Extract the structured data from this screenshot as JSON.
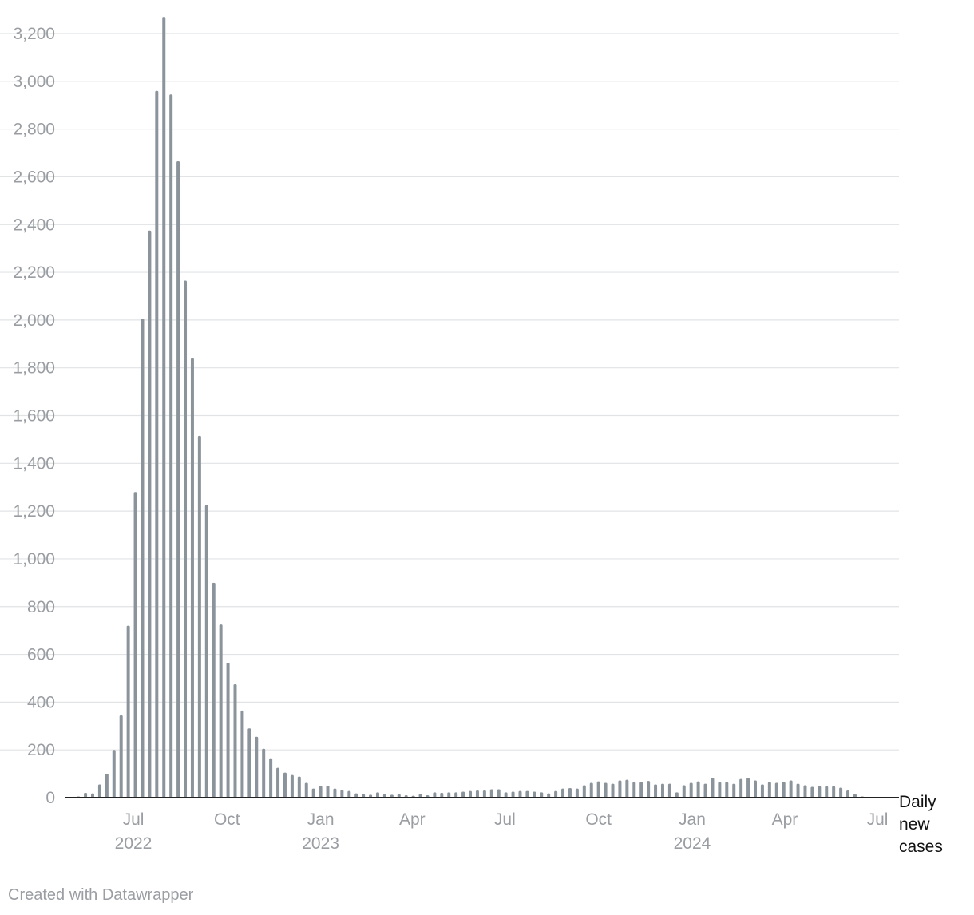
{
  "chart_data": {
    "type": "bar",
    "ylabel": "",
    "xlabel": "",
    "ylim": [
      0,
      3200
    ],
    "yticks": [
      0,
      200,
      400,
      600,
      800,
      1000,
      1200,
      1400,
      1600,
      1800,
      2000,
      2200,
      2400,
      2600,
      2800,
      3000,
      3200
    ],
    "ytick_labels": [
      "0",
      "200",
      "400",
      "600",
      "800",
      "1,000",
      "1,200",
      "1,400",
      "1,600",
      "1,800",
      "2,000",
      "2,200",
      "2,400",
      "2,600",
      "2,800",
      "3,000",
      "3,200"
    ],
    "xticks": [
      {
        "date": "2022-07-01",
        "label": "Jul",
        "year": "2022"
      },
      {
        "date": "2022-10-01",
        "label": "Oct",
        "year": ""
      },
      {
        "date": "2023-01-01",
        "label": "Jan",
        "year": "2023"
      },
      {
        "date": "2023-04-01",
        "label": "Apr",
        "year": ""
      },
      {
        "date": "2023-07-01",
        "label": "Jul",
        "year": ""
      },
      {
        "date": "2023-10-01",
        "label": "Oct",
        "year": ""
      },
      {
        "date": "2024-01-01",
        "label": "Jan",
        "year": "2024"
      },
      {
        "date": "2024-04-01",
        "label": "Apr",
        "year": ""
      },
      {
        "date": "2024-07-01",
        "label": "Jul",
        "year": ""
      }
    ],
    "series_label": [
      "Daily",
      "new",
      "cases"
    ],
    "bar_color": "#8b949b",
    "x_start": "2022-05-08",
    "interval_days": 7,
    "values": [
      5,
      20,
      18,
      55,
      100,
      200,
      345,
      720,
      1280,
      2005,
      2375,
      2960,
      3270,
      2945,
      2665,
      2165,
      1840,
      1515,
      1225,
      900,
      725,
      565,
      475,
      365,
      290,
      255,
      205,
      165,
      125,
      105,
      95,
      88,
      62,
      38,
      48,
      50,
      38,
      32,
      28,
      18,
      15,
      12,
      22,
      15,
      12,
      15,
      10,
      8,
      15,
      10,
      22,
      20,
      22,
      22,
      25,
      28,
      30,
      30,
      35,
      35,
      22,
      25,
      28,
      28,
      25,
      22,
      18,
      28,
      38,
      40,
      38,
      52,
      62,
      68,
      62,
      58,
      72,
      75,
      65,
      65,
      70,
      55,
      58,
      58,
      22,
      52,
      62,
      68,
      58,
      82,
      65,
      65,
      58,
      78,
      82,
      72,
      55,
      65,
      62,
      65,
      72,
      58,
      52,
      45,
      48,
      48,
      48,
      42,
      30,
      15,
      5,
      2
    ]
  },
  "footer": {
    "credit": "Created with Datawrapper"
  }
}
